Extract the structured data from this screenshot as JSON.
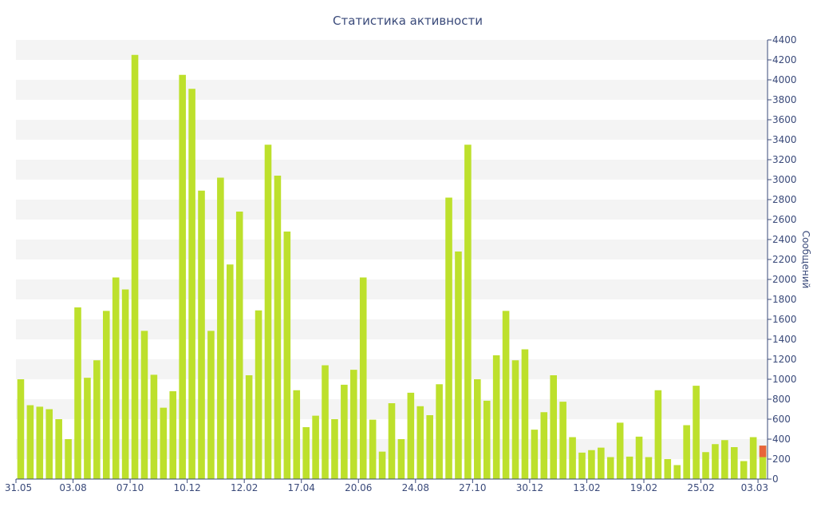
{
  "chart_data": {
    "type": "bar",
    "title": "Статистика активности",
    "ylabel": "Сообщений",
    "ylim": [
      0,
      4400
    ],
    "yticks": [
      0,
      200,
      400,
      600,
      800,
      1000,
      1200,
      1400,
      1600,
      1800,
      2000,
      2200,
      2400,
      2600,
      2800,
      3000,
      3200,
      3400,
      3600,
      3800,
      4000,
      4200,
      4400
    ],
    "xtick_labels": [
      "31.05",
      "03.08",
      "07.10",
      "10.12",
      "12.02",
      "17.04",
      "20.06",
      "24.08",
      "27.10",
      "30.12",
      "13.02",
      "19.02",
      "25.02",
      "03.03"
    ],
    "xtick_positions": [
      0,
      6,
      12,
      18,
      24,
      30,
      36,
      42,
      48,
      54,
      60,
      66,
      72,
      78
    ],
    "grid": "horizontal-bands",
    "colors": {
      "bar": "#bde02c",
      "highlight": "#e8643a",
      "text": "#3a4a7a",
      "band": "#f4f4f4",
      "axis": "#3a4a7a"
    },
    "values": [
      1000,
      740,
      725,
      700,
      600,
      400,
      1720,
      1015,
      1190,
      1685,
      2020,
      1900,
      4250,
      1485,
      1045,
      715,
      880,
      4050,
      3910,
      2890,
      1485,
      3020,
      2150,
      2680,
      1040,
      1690,
      3350,
      3040,
      2480,
      890,
      520,
      635,
      1140,
      600,
      945,
      1095,
      2020,
      595,
      275,
      760,
      400,
      865,
      730,
      640,
      950,
      2820,
      2280,
      3350,
      1000,
      785,
      1240,
      1685,
      1190,
      1300,
      495,
      670,
      1040,
      775,
      420,
      265,
      290,
      315,
      220,
      565,
      225,
      425,
      220,
      890,
      200,
      140,
      540,
      935,
      270,
      350,
      390,
      320,
      180,
      420,
      335
    ],
    "highlight": {
      "index": 78,
      "value": 335,
      "base": 220
    }
  }
}
